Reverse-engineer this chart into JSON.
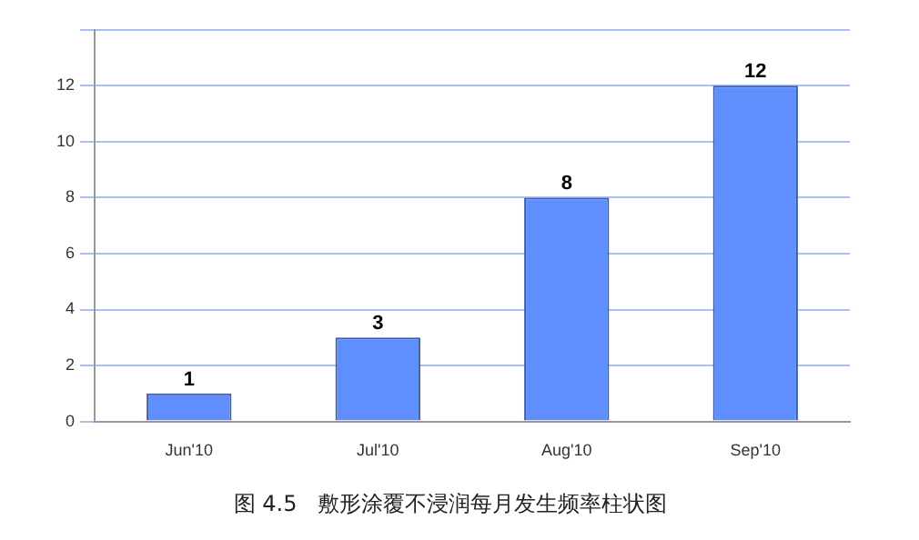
{
  "chart_data": {
    "type": "bar",
    "title": "图 4.5   敷形涂覆不浸润每月发生频率柱状图",
    "categories": [
      "Jun'10",
      "Jul'10",
      "Aug'10",
      "Sep'10"
    ],
    "values": [
      1,
      3,
      8,
      12
    ],
    "color": "#5f8ffc",
    "ylim": [
      0,
      14
    ],
    "yticks": [
      0,
      2,
      4,
      6,
      8,
      10,
      12,
      {
        "value": 14,
        "label": null
      }
    ],
    "grid": "y",
    "data_labels": true,
    "legend": false
  }
}
